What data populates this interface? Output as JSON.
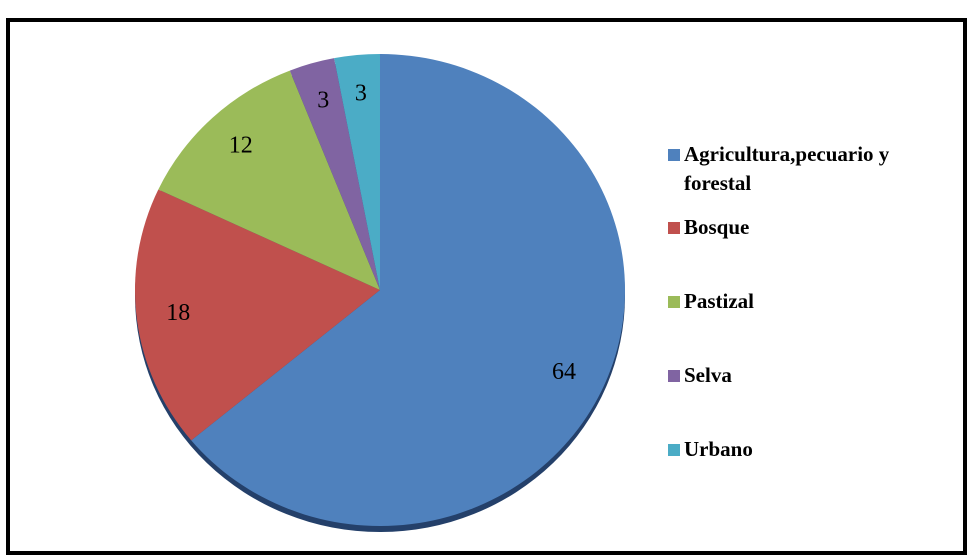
{
  "chart_data": {
    "type": "pie",
    "categories": [
      "Agricultura,pecuario y forestal",
      "Bosque",
      "Pastizal",
      "Selva",
      "Urbano"
    ],
    "values": [
      64,
      18,
      12,
      3,
      3
    ],
    "colors": [
      "#4f81bd",
      "#c0504d",
      "#9bbb59",
      "#8064a2",
      "#4bacc6"
    ],
    "legend": "right"
  }
}
